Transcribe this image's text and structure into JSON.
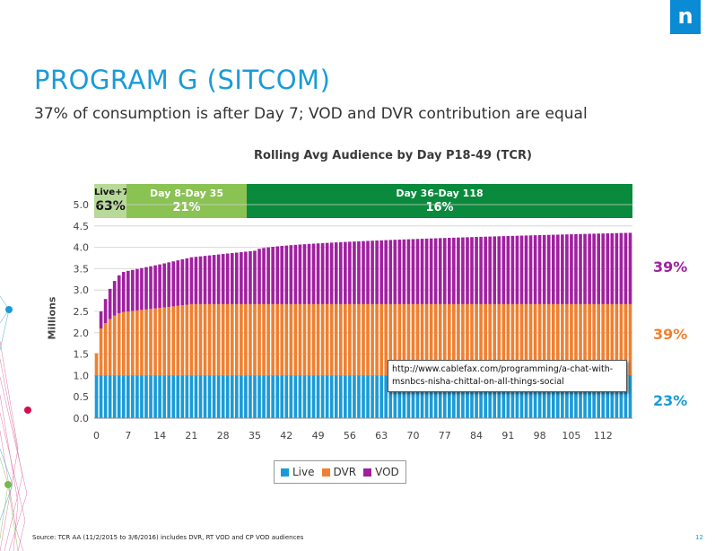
{
  "slide": {
    "logo_text": "n",
    "title": "PROGRAM G (SITCOM)",
    "subtitle": "37% of consumption is after Day 7; VOD and DVR contribution are equal",
    "source": "Source: TCR AA (11/2/2015 to 3/6/2016) includes DVR, RT VOD and CP VOD audiences",
    "page_number": "12",
    "url_note": "http://www.cablefax.com/programming/a-chat-with-msnbcs-nisha-chittal-on-all-things-social"
  },
  "colors": {
    "live": "#1a9bd7",
    "dvr": "#f08030",
    "vod": "#a020a0",
    "band_a": "#b8d999",
    "band_b": "#8bc254",
    "band_c": "#0a8a3c",
    "title": "#1a9bd7"
  },
  "bands": [
    {
      "label": "Live+7",
      "value": "63%"
    },
    {
      "label": "Day 8-Day 35",
      "value": "21%"
    },
    {
      "label": "Day 36-Day 118",
      "value": "16%"
    }
  ],
  "chart_data": {
    "type": "bar",
    "stacked": true,
    "title": "Rolling Avg Audience by Day P18-49 (TCR)",
    "ylabel": "Millions",
    "xlabel": "",
    "ylim": [
      0,
      5.0
    ],
    "yticks": [
      "0.0",
      "0.5",
      "1.0",
      "1.5",
      "2.0",
      "2.5",
      "3.0",
      "3.5",
      "4.0",
      "4.5",
      "5.0"
    ],
    "xticks": [
      "0",
      "7",
      "14",
      "21",
      "28",
      "35",
      "42",
      "49",
      "56",
      "63",
      "70",
      "77",
      "84",
      "91",
      "98",
      "105",
      "112"
    ],
    "x_range": [
      0,
      118
    ],
    "series": [
      {
        "name": "Live",
        "color_key": "live",
        "curve": {
          "day0": 1.0,
          "plateau": 1.0
        }
      },
      {
        "name": "DVR",
        "color_key": "dvr",
        "curve": {
          "day0": 0.52,
          "day1": 1.1,
          "day7": 1.5,
          "day14": 1.58,
          "plateau": 1.67
        }
      },
      {
        "name": "VOD",
        "color_key": "vod",
        "curve": {
          "day0": 0.0,
          "day1": 0.4,
          "day7": 0.95,
          "day14": 1.02,
          "day35": 1.25,
          "day118": 1.67
        }
      }
    ],
    "legend": [
      "Live",
      "DVR",
      "VOD"
    ],
    "legend_position": "bottom",
    "share_labels": [
      {
        "series": "VOD",
        "value": "39%"
      },
      {
        "series": "DVR",
        "value": "39%"
      },
      {
        "series": "Live",
        "value": "23%"
      }
    ]
  }
}
